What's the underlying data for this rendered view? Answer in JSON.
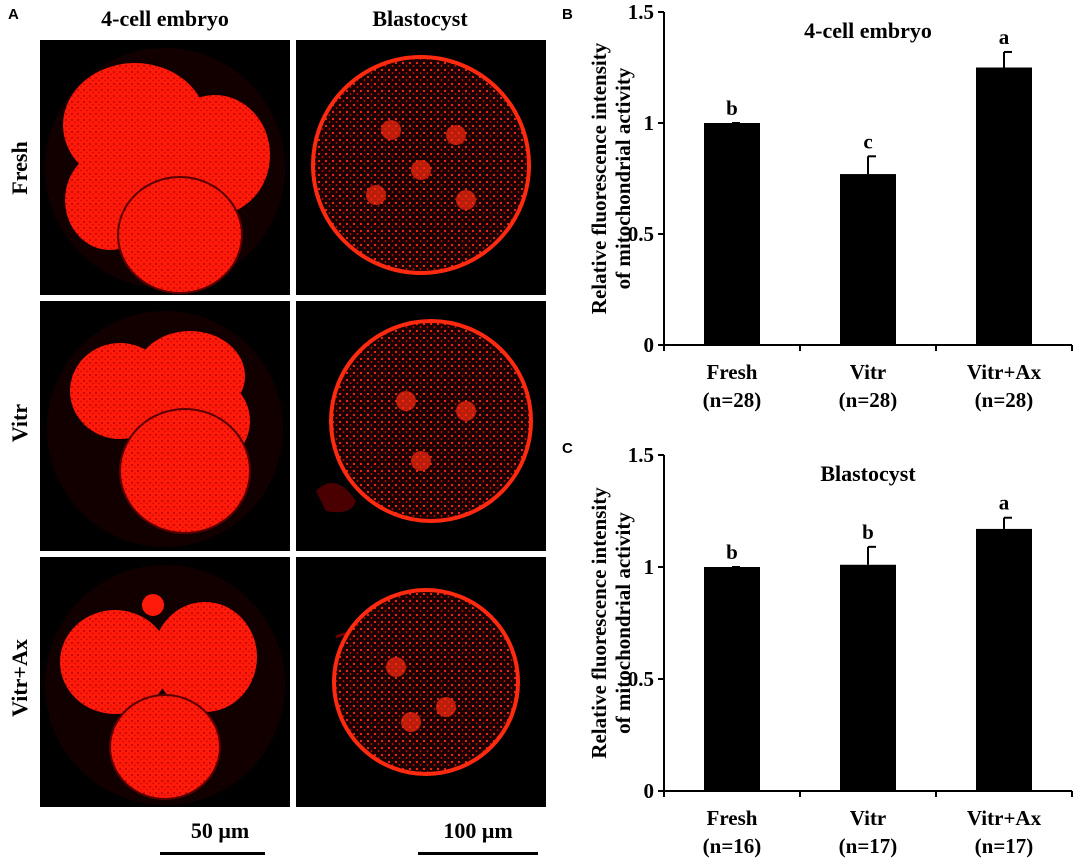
{
  "panel_a": {
    "letter": "A",
    "columns": [
      "4-cell embryo",
      "Blastocyst"
    ],
    "rows": [
      "Fresh",
      "Vitr",
      "Vitr+Ax"
    ],
    "scale_bars": [
      "50 μm",
      "100 μm"
    ]
  },
  "colors": {
    "fluorescence": "#ff1a0a",
    "background": "#000000",
    "bar": "#000000"
  },
  "chart_data": [
    {
      "letter": "B",
      "type": "bar",
      "title": "4-cell embryo",
      "ylabel_line1": "Relative fluorescence intensity",
      "ylabel_line2": "of mitochondrial activity",
      "ylim": [
        0,
        1.5
      ],
      "yticks": [
        "0",
        "0.5",
        "1",
        "1.5"
      ],
      "ytick_values": [
        0,
        0.5,
        1,
        1.5
      ],
      "categories": [
        "Fresh",
        "Vitr",
        "Vitr+Ax"
      ],
      "category_n": [
        "(n=28)",
        "(n=28)",
        "(n=28)"
      ],
      "values": [
        1.0,
        0.77,
        1.25
      ],
      "errors": [
        0.0,
        0.08,
        0.07
      ],
      "sig_labels": [
        "b",
        "c",
        "a"
      ]
    },
    {
      "letter": "C",
      "type": "bar",
      "title": "Blastocyst",
      "ylabel_line1": "Relative fluorescence intensity",
      "ylabel_line2": "of mitochondrial activity",
      "ylim": [
        0,
        1.5
      ],
      "yticks": [
        "0",
        "0.5",
        "1",
        "1.5"
      ],
      "ytick_values": [
        0,
        0.5,
        1,
        1.5
      ],
      "categories": [
        "Fresh",
        "Vitr",
        "Vitr+Ax"
      ],
      "category_n": [
        "(n=16)",
        "(n=17)",
        "(n=17)"
      ],
      "values": [
        1.0,
        1.01,
        1.17
      ],
      "errors": [
        0.0,
        0.08,
        0.05
      ],
      "sig_labels": [
        "b",
        "b",
        "a"
      ]
    }
  ]
}
